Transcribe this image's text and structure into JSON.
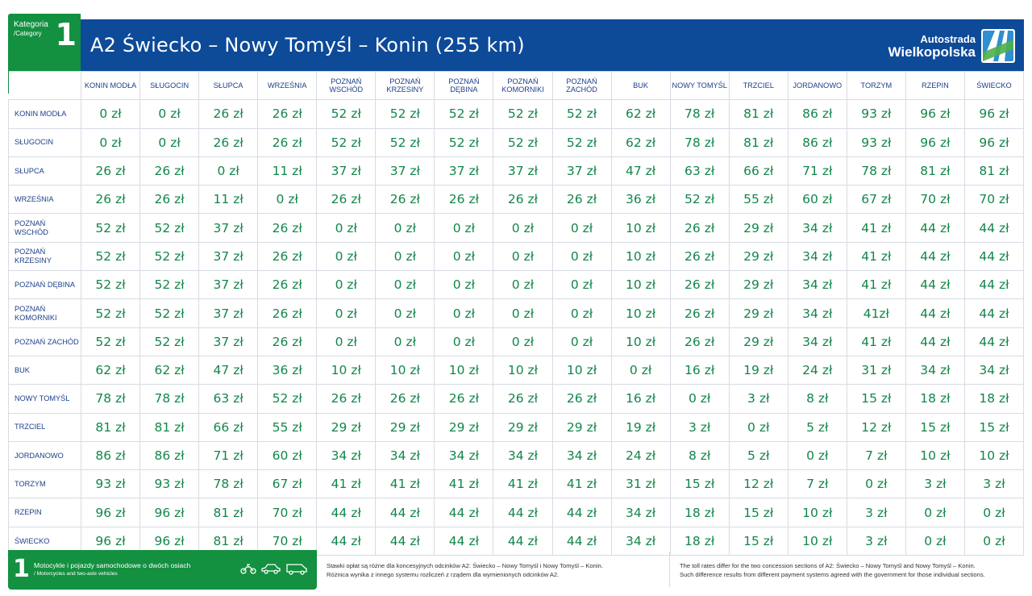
{
  "header": {
    "category_label": "Kategoria",
    "category_label_en": "/Category",
    "category_number": "1",
    "title": "A2 Świecko – Nowy Tomyśl – Konin (255 km)",
    "brand_line1": "Autostrada",
    "brand_line2": "Wielkopolska"
  },
  "colors": {
    "header_blue": "#0d4a98",
    "category_green": "#139040",
    "price_green": "#13864a",
    "label_blue": "#1d3f8a"
  },
  "table": {
    "columns": [
      "KONIN MODŁA",
      "SŁUGOCIN",
      "SŁUPCA",
      "WRZEŚNIA",
      "POZNAŃ WSCHÓD",
      "POZNAŃ KRZESINY",
      "POZNAŃ DĘBINA",
      "POZNAŃ KOMORNIKI",
      "POZNAŃ ZACHÓD",
      "BUK",
      "NOWY TOMYŚL",
      "TRZCIEL",
      "JORDANOWO",
      "TORZYM",
      "RZEPIN",
      "ŚWIECKO"
    ],
    "rows": [
      {
        "label": "KONIN MODŁA",
        "values": [
          "0 zł",
          "0 zł",
          "26 zł",
          "26 zł",
          "52 zł",
          "52 zł",
          "52 zł",
          "52 zł",
          "52 zł",
          "62 zł",
          "78 zł",
          "81 zł",
          "86 zł",
          "93 zł",
          "96 zł",
          "96 zł"
        ]
      },
      {
        "label": "SŁUGOCIN",
        "values": [
          "0 zł",
          "0 zł",
          "26 zł",
          "26 zł",
          "52 zł",
          "52 zł",
          "52 zł",
          "52 zł",
          "52 zł",
          "62 zł",
          "78 zł",
          "81 zł",
          "86 zł",
          "93 zł",
          "96 zł",
          "96 zł"
        ]
      },
      {
        "label": "SŁUPCA",
        "values": [
          "26 zł",
          "26 zł",
          "0 zł",
          "11 zł",
          "37 zł",
          "37 zł",
          "37 zł",
          "37 zł",
          "37 zł",
          "47 zł",
          "63 zł",
          "66 zł",
          "71 zł",
          "78 zł",
          "81 zł",
          "81 zł"
        ]
      },
      {
        "label": "WRZEŚNIA",
        "values": [
          "26 zł",
          "26 zł",
          "11 zł",
          "0 zł",
          "26 zł",
          "26 zł",
          "26 zł",
          "26 zł",
          "26 zł",
          "36 zł",
          "52 zł",
          "55 zł",
          "60 zł",
          "67 zł",
          "70 zł",
          "70 zł"
        ]
      },
      {
        "label": "POZNAŃ WSCHÓD",
        "values": [
          "52 zł",
          "52 zł",
          "37 zł",
          "26 zł",
          "0 zł",
          "0 zł",
          "0 zł",
          "0 zł",
          "0 zł",
          "10 zł",
          "26 zł",
          "29 zł",
          "34 zł",
          "41 zł",
          "44 zł",
          "44 zł"
        ]
      },
      {
        "label": "POZNAŃ KRZESINY",
        "values": [
          "52 zł",
          "52 zł",
          "37 zł",
          "26 zł",
          "0 zł",
          "0 zł",
          "0 zł",
          "0 zł",
          "0 zł",
          "10 zł",
          "26 zł",
          "29 zł",
          "34 zł",
          "41 zł",
          "44 zł",
          "44 zł"
        ]
      },
      {
        "label": "POZNAŃ DĘBINA",
        "values": [
          "52 zł",
          "52 zł",
          "37 zł",
          "26 zł",
          "0 zł",
          "0 zł",
          "0 zł",
          "0 zł",
          "0 zł",
          "10 zł",
          "26 zł",
          "29 zł",
          "34 zł",
          "41 zł",
          "44 zł",
          "44 zł"
        ]
      },
      {
        "label": "POZNAŃ KOMORNIKI",
        "values": [
          "52 zł",
          "52 zł",
          "37 zł",
          "26 zł",
          "0 zł",
          "0 zł",
          "0 zł",
          "0 zł",
          "0 zł",
          "10 zł",
          "26 zł",
          "29 zł",
          "34 zł",
          "41zł",
          "44 zł",
          "44 zł"
        ]
      },
      {
        "label": "POZNAŃ ZACHÓD",
        "values": [
          "52 zł",
          "52 zł",
          "37 zł",
          "26 zł",
          "0 zł",
          "0 zł",
          "0 zł",
          "0 zł",
          "0 zł",
          "10 zł",
          "26 zł",
          "29 zł",
          "34 zł",
          "41 zł",
          "44 zł",
          "44 zł"
        ]
      },
      {
        "label": "BUK",
        "values": [
          "62 zł",
          "62 zł",
          "47 zł",
          "36 zł",
          "10 zł",
          "10 zł",
          "10 zł",
          "10 zł",
          "10 zł",
          "0 zł",
          "16 zł",
          "19 zł",
          "24 zł",
          "31 zł",
          "34 zł",
          "34 zł"
        ]
      },
      {
        "label": "NOWY TOMYŚL",
        "values": [
          "78 zł",
          "78 zł",
          "63 zł",
          "52 zł",
          "26 zł",
          "26 zł",
          "26 zł",
          "26 zł",
          "26 zł",
          "16 zł",
          "0 zł",
          "3 zł",
          "8 zł",
          "15 zł",
          "18 zł",
          "18 zł"
        ]
      },
      {
        "label": "TRZCIEL",
        "values": [
          "81 zł",
          "81 zł",
          "66 zł",
          "55 zł",
          "29 zł",
          "29 zł",
          "29 zł",
          "29 zł",
          "29 zł",
          "19 zł",
          "3 zł",
          "0 zł",
          "5 zł",
          "12 zł",
          "15 zł",
          "15 zł"
        ]
      },
      {
        "label": "JORDANOWO",
        "values": [
          "86 zł",
          "86 zł",
          "71 zł",
          "60 zł",
          "34 zł",
          "34 zł",
          "34 zł",
          "34 zł",
          "34 zł",
          "24 zł",
          "8 zł",
          "5 zł",
          "0 zł",
          "7 zł",
          "10 zł",
          "10 zł"
        ]
      },
      {
        "label": "TORZYM",
        "values": [
          "93 zł",
          "93 zł",
          "78 zł",
          "67 zł",
          "41 zł",
          "41 zł",
          "41 zł",
          "41 zł",
          "41 zł",
          "31 zł",
          "15 zł",
          "12 zł",
          "7 zł",
          "0 zł",
          "3 zł",
          "3 zł"
        ]
      },
      {
        "label": "RZEPIN",
        "values": [
          "96 zł",
          "96 zł",
          "81 zł",
          "70 zł",
          "44 zł",
          "44 zł",
          "44 zł",
          "44 zł",
          "44 zł",
          "34 zł",
          "18 zł",
          "15 zł",
          "10 zł",
          "3 zł",
          "0 zł",
          "0 zł"
        ]
      },
      {
        "label": "ŚWIECKO",
        "values": [
          "96 zł",
          "96 zł",
          "81 zł",
          "70 zł",
          "44 zł",
          "44 zł",
          "44 zł",
          "44 zł",
          "44 zł",
          "34 zł",
          "18 zł",
          "15 zł",
          "10 zł",
          "3 zł",
          "0 zł",
          "0 zł"
        ]
      }
    ]
  },
  "footer": {
    "category_number": "1",
    "desc_pl": "Motocykle i pojazdy samochodowe o dwóch osiach",
    "desc_en": "/ Motorcycles and two-axle vehicles",
    "note_pl_1": "Stawki opłat są różne dla koncesyjnych odcinków A2: Świecko – Nowy Tomyśl i Nowy Tomyśl – Konin.",
    "note_pl_2": "Różnica wynika z innego systemu rozliczeń z rządem dla wymienionych odcinków A2.",
    "note_en_1": "The toll rates differ for the two concession sections of A2: Świecko – Nowy Tomyśl and Nowy Tomyśl – Konin.",
    "note_en_2": "Such difference results from different payment systems agreed with the government for those individual sections."
  },
  "icons": [
    "motorcycle-icon",
    "car-icon",
    "van-icon",
    "autostrada-logo-icon"
  ]
}
